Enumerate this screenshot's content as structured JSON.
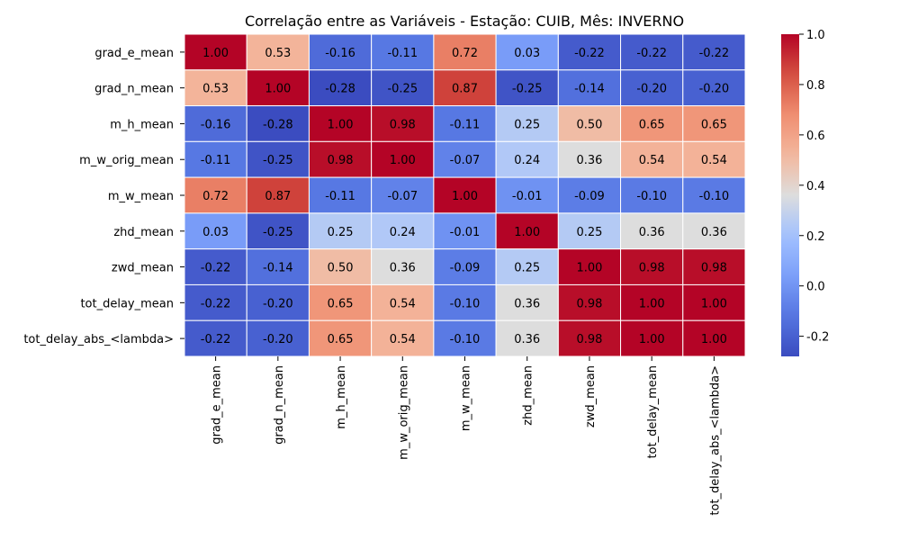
{
  "chart_data": {
    "type": "heatmap",
    "title": "Correlação entre as Variáveis - Estação: CUIB, Mês: INVERNO",
    "xlabel": "",
    "ylabel": "",
    "rows": [
      "grad_e_mean",
      "grad_n_mean",
      "m_h_mean",
      "m_w_orig_mean",
      "m_w_mean",
      "zhd_mean",
      "zwd_mean",
      "tot_delay_mean",
      "tot_delay_abs_<lambda>"
    ],
    "columns": [
      "grad_e_mean",
      "grad_n_mean",
      "m_h_mean",
      "m_w_orig_mean",
      "m_w_mean",
      "zhd_mean",
      "zwd_mean",
      "tot_delay_mean",
      "tot_delay_abs_<lambda>"
    ],
    "values": [
      [
        1.0,
        0.53,
        -0.16,
        -0.11,
        0.72,
        0.03,
        -0.22,
        -0.22,
        -0.22
      ],
      [
        0.53,
        1.0,
        -0.28,
        -0.25,
        0.87,
        -0.25,
        -0.14,
        -0.2,
        -0.2
      ],
      [
        -0.16,
        -0.28,
        1.0,
        0.98,
        -0.11,
        0.25,
        0.5,
        0.65,
        0.65
      ],
      [
        -0.11,
        -0.25,
        0.98,
        1.0,
        -0.07,
        0.24,
        0.36,
        0.54,
        0.54
      ],
      [
        0.72,
        0.87,
        -0.11,
        -0.07,
        1.0,
        -0.01,
        -0.09,
        -0.1,
        -0.1
      ],
      [
        0.03,
        -0.25,
        0.25,
        0.24,
        -0.01,
        1.0,
        0.25,
        0.36,
        0.36
      ],
      [
        -0.22,
        -0.14,
        0.5,
        0.36,
        -0.09,
        0.25,
        1.0,
        0.98,
        0.98
      ],
      [
        -0.22,
        -0.2,
        0.65,
        0.54,
        -0.1,
        0.36,
        0.98,
        1.0,
        1.0
      ],
      [
        -0.22,
        -0.2,
        0.65,
        0.54,
        -0.1,
        0.36,
        0.98,
        1.0,
        1.0
      ]
    ],
    "colormap": "coolwarm",
    "vmin": -0.28,
    "vmax": 1.0,
    "colorbar_ticks": [
      "-0.2",
      "0.0",
      "0.2",
      "0.4",
      "0.6",
      "0.8",
      "1.0"
    ],
    "annotations": true,
    "cell_border_color": "#ffffff",
    "grid": false
  }
}
